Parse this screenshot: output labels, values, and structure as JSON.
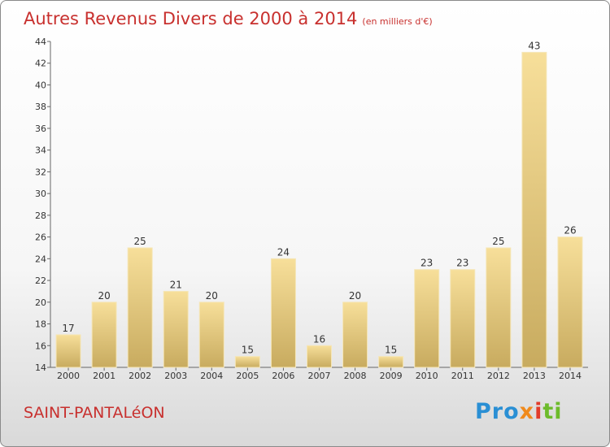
{
  "title": "Autres Revenus Divers de 2000 à 2014",
  "unit": "(en milliers d'€)",
  "city": "SAINT-PANTALéON",
  "logo": {
    "p1": "Pro",
    "p2": "x",
    "p3": "i",
    "p4": "ti"
  },
  "chart_data": {
    "type": "bar",
    "categories": [
      "2000",
      "2001",
      "2002",
      "2003",
      "2004",
      "2005",
      "2006",
      "2007",
      "2008",
      "2009",
      "2010",
      "2011",
      "2012",
      "2013",
      "2014"
    ],
    "values": [
      17,
      20,
      25,
      21,
      20,
      15,
      24,
      16,
      20,
      15,
      23,
      23,
      25,
      43,
      26
    ],
    "title": "Autres Revenus Divers de 2000 à 2014",
    "xlabel": "",
    "ylabel": "",
    "ylim": [
      14,
      44
    ],
    "yticks": [
      14,
      16,
      18,
      20,
      22,
      24,
      26,
      28,
      30,
      32,
      34,
      36,
      38,
      40,
      42,
      44
    ],
    "grid": false,
    "bar_color": "#e8cc7e"
  }
}
